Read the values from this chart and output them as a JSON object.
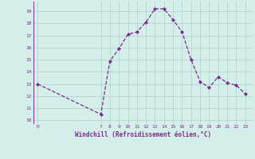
{
  "x": [
    0,
    7,
    8,
    9,
    10,
    11,
    12,
    13,
    14,
    15,
    16,
    17,
    18,
    19,
    20,
    21,
    22,
    23
  ],
  "y": [
    13,
    10.5,
    14.9,
    15.9,
    17.1,
    17.3,
    18.1,
    19.2,
    19.2,
    18.3,
    17.3,
    15.0,
    13.2,
    12.7,
    13.6,
    13.1,
    12.9,
    12.2
  ],
  "line_color": "#7b2d8b",
  "bg_color": "#d4eeea",
  "grid_color": "#b8d8d4",
  "xlabel": "Windchill (Refroidissement éolien,°C)",
  "xlabel_color": "#7b2d8b",
  "tick_color": "#7b2d8b",
  "yticks": [
    10,
    11,
    12,
    13,
    14,
    15,
    16,
    17,
    18,
    19
  ],
  "xticks": [
    0,
    7,
    8,
    9,
    10,
    11,
    12,
    13,
    14,
    15,
    16,
    17,
    18,
    19,
    20,
    21,
    22,
    23
  ],
  "ylim": [
    9.7,
    19.8
  ],
  "xlim": [
    -0.5,
    23.8
  ]
}
